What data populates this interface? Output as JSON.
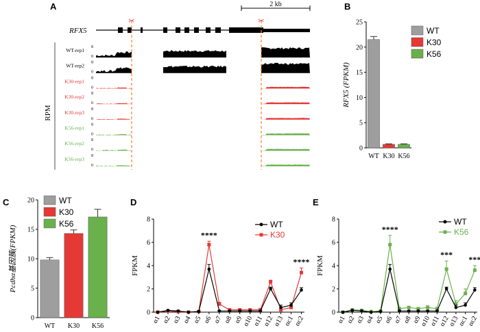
{
  "panels": {
    "A": "A",
    "B": "B",
    "C": "C",
    "D": "D",
    "E": "E"
  },
  "colors": {
    "WT": "#000000",
    "WT_bar": "#9e9e9e",
    "K30": "#e53935",
    "K56": "#6ab04c",
    "cut": "#ff7f27"
  },
  "panelA": {
    "gene": "RFX5",
    "scalebar": "2 kb",
    "ylabel": "RPM",
    "tracks": [
      {
        "name": "WT-rep1",
        "ymax": "8",
        "ymin": "0",
        "group": "WT"
      },
      {
        "name": "WT-rep2",
        "ymax": "8",
        "ymin": "0",
        "group": "WT"
      },
      {
        "name": "K30-rep1",
        "ymax": "8",
        "ymin": "0",
        "group": "K30"
      },
      {
        "name": "K30-rep2",
        "ymax": "8",
        "ymin": "0",
        "group": "K30"
      },
      {
        "name": "K30-rep3",
        "ymax": "8",
        "ymin": "0",
        "group": "K30"
      },
      {
        "name": "K56-rep1",
        "ymax": "8",
        "ymin": "0",
        "group": "K56"
      },
      {
        "name": "K56-rep2",
        "ymax": "8",
        "ymin": "0",
        "group": "K56"
      },
      {
        "name": "K56-rep3",
        "ymax": "8",
        "ymin": "0",
        "group": "K56"
      }
    ]
  },
  "chart_data": [
    {
      "panel": "B",
      "type": "bar",
      "ylabel": "RFX5 (FPKM)",
      "categories": [
        "WT",
        "K30",
        "K56"
      ],
      "values": [
        21.5,
        0.7,
        0.7
      ],
      "errors": [
        0.6,
        0.1,
        0.1
      ],
      "ylim": [
        0,
        25
      ],
      "yticks": [
        0,
        5,
        10,
        15,
        20,
        25
      ],
      "legend": [
        "WT",
        "K30",
        "K56"
      ]
    },
    {
      "panel": "C",
      "type": "bar",
      "ylabel": "Pcdhα基因簇(FPKM)",
      "categories": [
        "WT",
        "K30",
        "K56"
      ],
      "values": [
        9.8,
        14.3,
        17.1
      ],
      "errors": [
        0.4,
        0.6,
        1.3
      ],
      "ylim": [
        0,
        20
      ],
      "yticks": [
        0,
        5,
        10,
        15,
        20
      ],
      "legend": [
        "WT",
        "K30",
        "K56"
      ]
    },
    {
      "panel": "D",
      "type": "line",
      "ylabel": "FPKM",
      "x": [
        "α1",
        "α2",
        "α3",
        "α4",
        "α5",
        "α6",
        "α7",
        "α8",
        "α9",
        "α10",
        "α11",
        "α12",
        "α13",
        "αc1",
        "αc2"
      ],
      "series": [
        {
          "name": "WT",
          "values": [
            0,
            0.15,
            0.1,
            0,
            0.05,
            3.7,
            0.1,
            0.1,
            0.1,
            0.1,
            0.1,
            2.0,
            0.4,
            0.6,
            1.9
          ],
          "errors": [
            0.05,
            0.05,
            0.05,
            0.02,
            0.05,
            0.4,
            0.05,
            0.05,
            0.05,
            0.05,
            0.05,
            0.15,
            0.2,
            0.2,
            0.2
          ]
        },
        {
          "name": "K30",
          "values": [
            0,
            0.1,
            0.05,
            0,
            0.05,
            5.8,
            0.7,
            0.2,
            0.2,
            0.2,
            0.2,
            2.6,
            0.2,
            0.4,
            3.4
          ],
          "errors": [
            0.05,
            0.05,
            0.05,
            0.02,
            0.05,
            0.3,
            0.15,
            0.05,
            0.05,
            0.05,
            0.05,
            0.15,
            0.1,
            0.15,
            0.4
          ]
        }
      ],
      "ylim": [
        0,
        8
      ],
      "yticks": [
        0,
        2,
        4,
        6,
        8
      ],
      "annotations": [
        {
          "x": "α6",
          "text": "****"
        },
        {
          "x": "αc2",
          "text": "****"
        }
      ]
    },
    {
      "panel": "E",
      "type": "line",
      "ylabel": "FPKM",
      "x": [
        "α1",
        "α2",
        "α3",
        "α4",
        "α5",
        "α6",
        "α7",
        "α8",
        "α9",
        "α10",
        "α11",
        "α12",
        "α13",
        "αc1",
        "αc2"
      ],
      "series": [
        {
          "name": "WT",
          "values": [
            0,
            0.15,
            0.1,
            0,
            0.05,
            3.7,
            0.1,
            0.1,
            0.1,
            0.1,
            0.1,
            2.0,
            0.4,
            0.6,
            1.9
          ],
          "errors": [
            0.05,
            0.05,
            0.05,
            0.02,
            0.05,
            0.4,
            0.05,
            0.05,
            0.05,
            0.05,
            0.05,
            0.15,
            0.2,
            0.2,
            0.2
          ]
        },
        {
          "name": "K56",
          "values": [
            0,
            0.2,
            0.15,
            0.05,
            0.1,
            5.8,
            0.3,
            0.4,
            0.3,
            0.4,
            0.3,
            3.7,
            0.7,
            1.6,
            3.6
          ],
          "errors": [
            0.05,
            0.05,
            0.05,
            0.05,
            0.05,
            0.8,
            0.1,
            0.1,
            0.1,
            0.15,
            0.1,
            0.7,
            0.3,
            0.4,
            0.4
          ]
        }
      ],
      "ylim": [
        0,
        8
      ],
      "yticks": [
        0,
        2,
        4,
        6,
        8
      ],
      "annotations": [
        {
          "x": "α6",
          "text": "****"
        },
        {
          "x": "α12",
          "text": "***"
        },
        {
          "x": "αc2",
          "text": "***"
        }
      ]
    }
  ]
}
